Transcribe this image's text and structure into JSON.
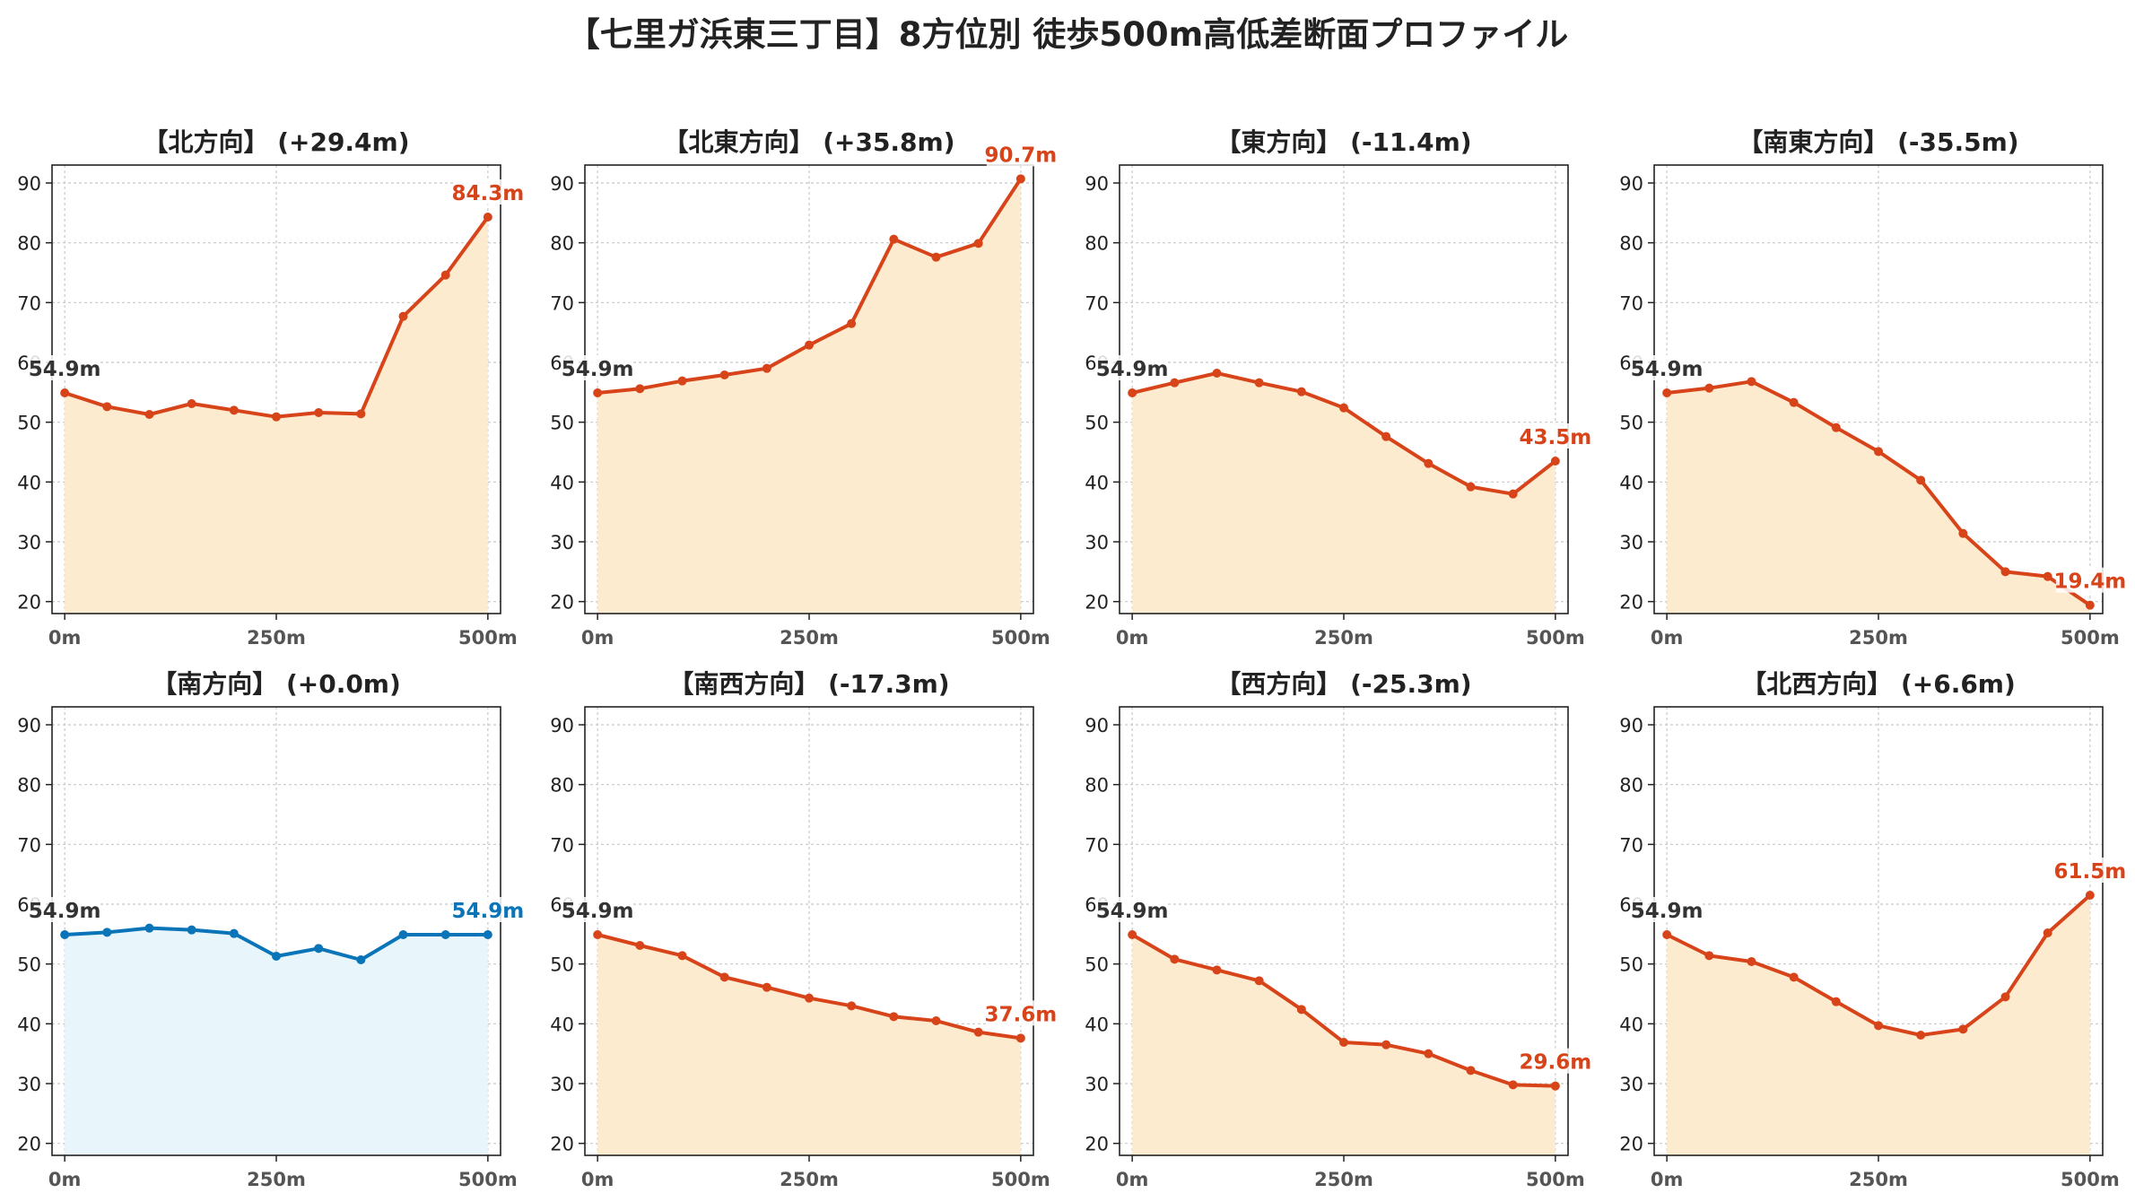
{
  "suptitle": "【七里ガ浜東三丁目】8方位別 徒歩500m高低差断面プロファイル",
  "colors": {
    "up": "#d8441a",
    "flat": "#0a74b8",
    "fill_up": "#fdebcf",
    "fill_flat": "#e8f5fb",
    "start_label": "#333333",
    "grid": "#c8c8c8"
  },
  "chart_data": [
    {
      "type": "area",
      "title": "【北方向】 (+29.4m)",
      "x": [
        0,
        50,
        100,
        150,
        200,
        250,
        300,
        350,
        400,
        450,
        500
      ],
      "y": [
        54.9,
        52.6,
        51.3,
        53.1,
        52.0,
        50.9,
        51.6,
        51.4,
        67.7,
        74.6,
        84.3
      ],
      "ylim": [
        18,
        93
      ],
      "xlim": [
        -15,
        515
      ],
      "yticks": [
        20,
        30,
        40,
        50,
        60,
        70,
        80,
        90
      ],
      "xticks": [
        0,
        250,
        500
      ],
      "xticklabels": [
        "0m",
        "250m",
        "500m"
      ],
      "start_label": "54.9m",
      "end_label": "84.3m",
      "style": "up",
      "grid": true
    },
    {
      "type": "area",
      "title": "【北東方向】 (+35.8m)",
      "x": [
        0,
        50,
        100,
        150,
        200,
        250,
        300,
        350,
        400,
        450,
        500
      ],
      "y": [
        54.9,
        55.6,
        56.9,
        57.9,
        59.0,
        62.9,
        66.5,
        80.6,
        77.6,
        79.9,
        90.7
      ],
      "ylim": [
        18,
        93
      ],
      "xlim": [
        -15,
        515
      ],
      "yticks": [
        20,
        30,
        40,
        50,
        60,
        70,
        80,
        90
      ],
      "xticks": [
        0,
        250,
        500
      ],
      "xticklabels": [
        "0m",
        "250m",
        "500m"
      ],
      "start_label": "54.9m",
      "end_label": "90.7m",
      "style": "up",
      "grid": true
    },
    {
      "type": "area",
      "title": "【東方向】 (-11.4m)",
      "x": [
        0,
        50,
        100,
        150,
        200,
        250,
        300,
        350,
        400,
        450,
        500
      ],
      "y": [
        54.9,
        56.6,
        58.2,
        56.6,
        55.1,
        52.4,
        47.6,
        43.1,
        39.2,
        38.0,
        43.5
      ],
      "ylim": [
        18,
        93
      ],
      "xlim": [
        -15,
        515
      ],
      "yticks": [
        20,
        30,
        40,
        50,
        60,
        70,
        80,
        90
      ],
      "xticks": [
        0,
        250,
        500
      ],
      "xticklabels": [
        "0m",
        "250m",
        "500m"
      ],
      "start_label": "54.9m",
      "end_label": "43.5m",
      "style": "up",
      "grid": true
    },
    {
      "type": "area",
      "title": "【南東方向】 (-35.5m)",
      "x": [
        0,
        50,
        100,
        150,
        200,
        250,
        300,
        350,
        400,
        450,
        500
      ],
      "y": [
        54.9,
        55.7,
        56.8,
        53.3,
        49.1,
        45.1,
        40.3,
        31.4,
        25.0,
        24.2,
        19.4
      ],
      "ylim": [
        18,
        93
      ],
      "xlim": [
        -15,
        515
      ],
      "yticks": [
        20,
        30,
        40,
        50,
        60,
        70,
        80,
        90
      ],
      "xticks": [
        0,
        250,
        500
      ],
      "xticklabels": [
        "0m",
        "250m",
        "500m"
      ],
      "start_label": "54.9m",
      "end_label": "19.4m",
      "style": "up",
      "grid": true
    },
    {
      "type": "area",
      "title": "【南方向】 (+0.0m)",
      "x": [
        0,
        50,
        100,
        150,
        200,
        250,
        300,
        350,
        400,
        450,
        500
      ],
      "y": [
        54.9,
        55.3,
        56.0,
        55.7,
        55.1,
        51.3,
        52.6,
        50.7,
        54.9,
        54.9,
        54.9
      ],
      "ylim": [
        18,
        93
      ],
      "xlim": [
        -15,
        515
      ],
      "yticks": [
        20,
        30,
        40,
        50,
        60,
        70,
        80,
        90
      ],
      "xticks": [
        0,
        250,
        500
      ],
      "xticklabels": [
        "0m",
        "250m",
        "500m"
      ],
      "start_label": "54.9m",
      "end_label": "54.9m",
      "style": "flat",
      "grid": true
    },
    {
      "type": "area",
      "title": "【南西方向】 (-17.3m)",
      "x": [
        0,
        50,
        100,
        150,
        200,
        250,
        300,
        350,
        400,
        450,
        500
      ],
      "y": [
        54.9,
        53.1,
        51.4,
        47.8,
        46.1,
        44.3,
        43.0,
        41.2,
        40.5,
        38.6,
        37.6
      ],
      "ylim": [
        18,
        93
      ],
      "xlim": [
        -15,
        515
      ],
      "yticks": [
        20,
        30,
        40,
        50,
        60,
        70,
        80,
        90
      ],
      "xticks": [
        0,
        250,
        500
      ],
      "xticklabels": [
        "0m",
        "250m",
        "500m"
      ],
      "start_label": "54.9m",
      "end_label": "37.6m",
      "style": "up",
      "grid": true
    },
    {
      "type": "area",
      "title": "【西方向】 (-25.3m)",
      "x": [
        0,
        50,
        100,
        150,
        200,
        250,
        300,
        350,
        400,
        450,
        500
      ],
      "y": [
        54.9,
        50.8,
        49.0,
        47.2,
        42.4,
        36.9,
        36.5,
        35.0,
        32.2,
        29.8,
        29.6
      ],
      "ylim": [
        18,
        93
      ],
      "xlim": [
        -15,
        515
      ],
      "yticks": [
        20,
        30,
        40,
        50,
        60,
        70,
        80,
        90
      ],
      "xticks": [
        0,
        250,
        500
      ],
      "xticklabels": [
        "0m",
        "250m",
        "500m"
      ],
      "start_label": "54.9m",
      "end_label": "29.6m",
      "style": "up",
      "grid": true
    },
    {
      "type": "area",
      "title": "【北西方向】 (+6.6m)",
      "x": [
        0,
        50,
        100,
        150,
        200,
        250,
        300,
        350,
        400,
        450,
        500
      ],
      "y": [
        54.9,
        51.4,
        50.4,
        47.8,
        43.7,
        39.7,
        38.1,
        39.1,
        44.5,
        55.2,
        61.5
      ],
      "ylim": [
        18,
        93
      ],
      "xlim": [
        -15,
        515
      ],
      "yticks": [
        20,
        30,
        40,
        50,
        60,
        70,
        80,
        90
      ],
      "xticks": [
        0,
        250,
        500
      ],
      "xticklabels": [
        "0m",
        "250m",
        "500m"
      ],
      "start_label": "54.9m",
      "end_label": "61.5m",
      "style": "up",
      "grid": true
    }
  ]
}
